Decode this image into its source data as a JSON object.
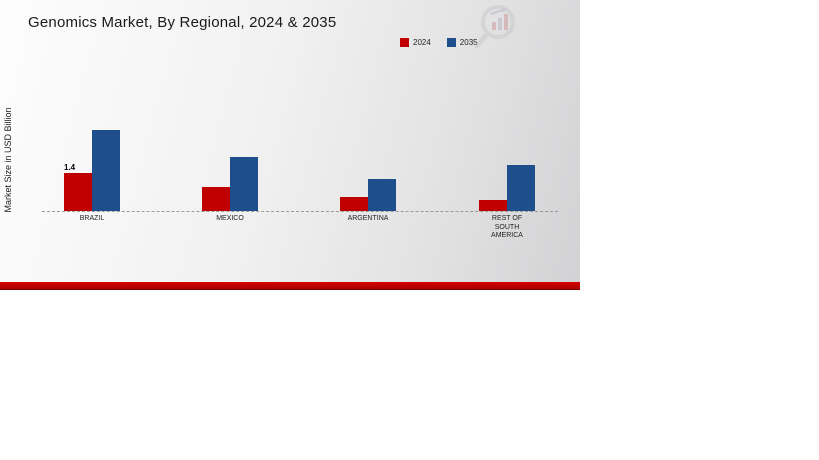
{
  "chart": {
    "title": "Genomics Market, By Regional, 2024 & 2035",
    "ylabel": "Market Size in USD Billion",
    "legend": [
      {
        "label": "2024",
        "color": "#c00000"
      },
      {
        "label": "2035",
        "color": "#1f4e8c"
      }
    ],
    "accent_stripe_color": "#c00000",
    "icons": {
      "watermark": "magnifier-bar-chart-logo"
    }
  },
  "chart_data": {
    "type": "bar",
    "title": "Genomics Market, By Regional, 2024 & 2035",
    "xlabel": "",
    "ylabel": "Market Size in USD Billion",
    "categories": [
      "BRAZIL",
      "MEXICO",
      "ARGENTINA",
      "REST OF SOUTH AMERICA"
    ],
    "series": [
      {
        "name": "2024",
        "color": "#c00000",
        "values": [
          1.4,
          0.9,
          0.5,
          0.4
        ]
      },
      {
        "name": "2035",
        "color": "#1f4e8c",
        "values": [
          3.0,
          2.0,
          1.2,
          1.7
        ]
      }
    ],
    "value_labels": [
      {
        "series": "2024",
        "category": "BRAZIL",
        "text": "1.4"
      }
    ],
    "ylim": [
      0,
      3.2
    ],
    "grid": false,
    "axis_line_style": "dashed-baseline",
    "legend_position": "top-right"
  }
}
